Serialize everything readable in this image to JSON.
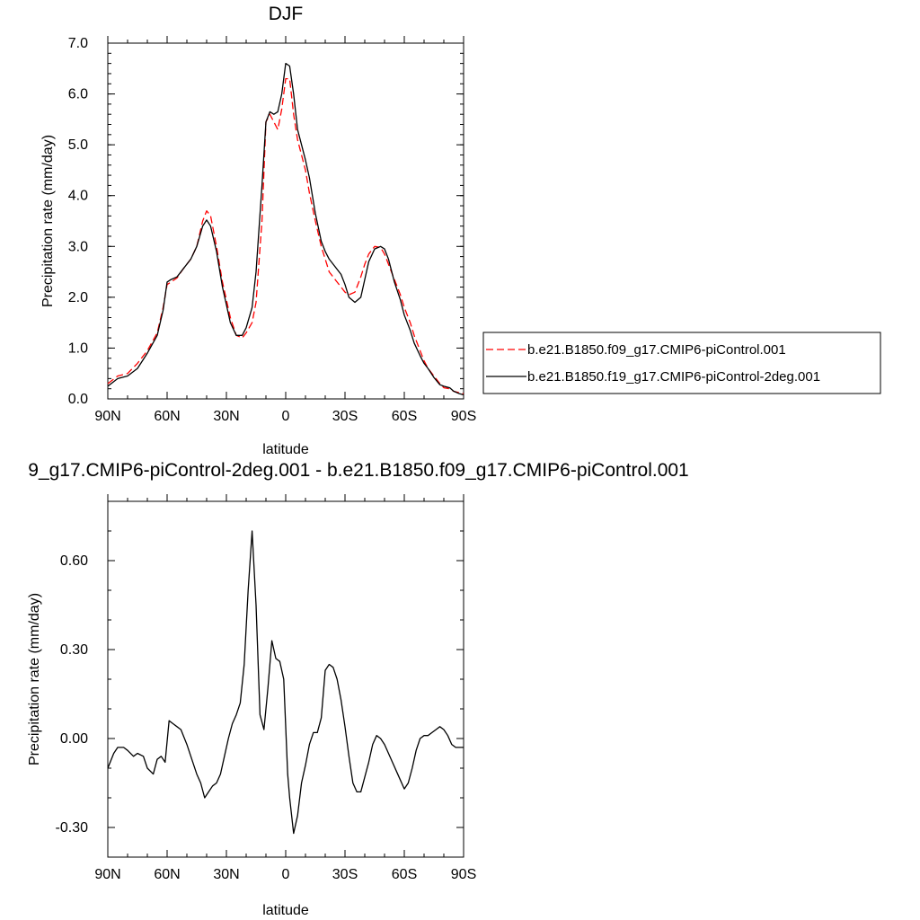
{
  "colors": {
    "control_f09": "#ff0000",
    "control_f19": "#000000",
    "difference": "#000000"
  },
  "chart_data": [
    {
      "type": "line",
      "title": "DJF",
      "xlabel": "latitude",
      "ylabel": "Precipitation rate (mm/day)",
      "xlim": [
        90,
        -90
      ],
      "ylim": [
        0,
        7
      ],
      "xticks": [
        90,
        60,
        30,
        0,
        -30,
        -60,
        -90
      ],
      "xtick_labels": [
        "90N",
        "60N",
        "30N",
        "0",
        "30S",
        "60S",
        "90S"
      ],
      "yticks": [
        0,
        1,
        2,
        3,
        4,
        5,
        6,
        7
      ],
      "ytick_labels": [
        "0.0",
        "1.0",
        "2.0",
        "3.0",
        "4.0",
        "5.0",
        "6.0",
        "7.0"
      ],
      "legend": "right",
      "series": [
        {
          "name": "b.e21.B1850.f09_g17.CMIP6-piControl.001",
          "style": "dashed",
          "color": "#ff0000",
          "x": [
            90,
            85,
            80,
            75,
            70,
            65,
            62,
            60,
            58,
            55,
            52,
            48,
            45,
            42,
            40,
            38,
            35,
            32,
            28,
            25,
            22,
            20,
            17,
            15,
            12,
            10,
            8,
            6,
            4,
            2,
            0,
            -2,
            -4,
            -6,
            -8,
            -10,
            -12,
            -15,
            -18,
            -20,
            -22,
            -25,
            -28,
            -30,
            -32,
            -35,
            -38,
            -40,
            -42,
            -45,
            -48,
            -50,
            -52,
            -55,
            -58,
            -60,
            -63,
            -65,
            -68,
            -70,
            -72,
            -75,
            -78,
            -80,
            -83,
            -85,
            -88,
            -90
          ],
          "y": [
            0.3,
            0.45,
            0.5,
            0.7,
            0.95,
            1.3,
            1.8,
            2.25,
            2.3,
            2.38,
            2.55,
            2.75,
            3.0,
            3.5,
            3.7,
            3.6,
            3.0,
            2.3,
            1.6,
            1.25,
            1.2,
            1.3,
            1.5,
            1.9,
            3.5,
            5.45,
            5.6,
            5.45,
            5.3,
            5.7,
            6.3,
            6.3,
            5.6,
            5.1,
            4.8,
            4.5,
            4.05,
            3.5,
            3.0,
            2.75,
            2.5,
            2.35,
            2.2,
            2.1,
            2.05,
            2.1,
            2.4,
            2.65,
            2.85,
            3.0,
            2.98,
            2.85,
            2.65,
            2.35,
            2.05,
            1.8,
            1.5,
            1.25,
            0.95,
            0.75,
            0.6,
            0.45,
            0.3,
            0.22,
            0.2,
            0.15,
            0.12,
            0.1
          ]
        },
        {
          "name": "b.e21.B1850.f19_g17.CMIP6-piControl-2deg.001",
          "style": "solid",
          "color": "#000000",
          "x": [
            90,
            85,
            80,
            75,
            70,
            65,
            62,
            60,
            58,
            55,
            52,
            48,
            45,
            42,
            40,
            38,
            35,
            32,
            28,
            25,
            22,
            20,
            17,
            15,
            12,
            10,
            8,
            6,
            4,
            2,
            0,
            -2,
            -4,
            -6,
            -8,
            -10,
            -12,
            -15,
            -18,
            -20,
            -22,
            -25,
            -28,
            -30,
            -32,
            -35,
            -38,
            -40,
            -42,
            -45,
            -48,
            -50,
            -52,
            -55,
            -58,
            -60,
            -63,
            -65,
            -68,
            -70,
            -72,
            -75,
            -78,
            -80,
            -83,
            -85,
            -88,
            -90
          ],
          "y": [
            0.25,
            0.4,
            0.45,
            0.6,
            0.9,
            1.25,
            1.75,
            2.3,
            2.35,
            2.4,
            2.55,
            2.75,
            3.0,
            3.4,
            3.52,
            3.4,
            2.9,
            2.2,
            1.5,
            1.25,
            1.25,
            1.4,
            1.8,
            2.5,
            4.2,
            5.45,
            5.65,
            5.6,
            5.65,
            6.0,
            6.6,
            6.55,
            6.0,
            5.3,
            5.0,
            4.7,
            4.35,
            3.65,
            3.1,
            2.9,
            2.75,
            2.6,
            2.45,
            2.25,
            2.0,
            1.9,
            2.0,
            2.35,
            2.7,
            2.95,
            3.0,
            2.95,
            2.75,
            2.3,
            1.95,
            1.65,
            1.35,
            1.1,
            0.85,
            0.7,
            0.6,
            0.42,
            0.28,
            0.25,
            0.22,
            0.15,
            0.1,
            0.08
          ]
        }
      ]
    },
    {
      "type": "line",
      "title": "9_g17.CMIP6-piControl-2deg.001 - b.e21.B1850.f09_g17.CMIP6-piControl.001",
      "xlabel": "latitude",
      "ylabel": "Precipitation rate (mm/day)",
      "xlim": [
        90,
        -90
      ],
      "ylim": [
        -0.4,
        0.8
      ],
      "xticks": [
        90,
        60,
        30,
        0,
        -30,
        -60,
        -90
      ],
      "xtick_labels": [
        "90N",
        "60N",
        "30N",
        "0",
        "30S",
        "60S",
        "90S"
      ],
      "yticks": [
        -0.3,
        0.0,
        0.3,
        0.6
      ],
      "ytick_labels": [
        "-0.30",
        "0.00",
        "0.30",
        "0.60"
      ],
      "series": [
        {
          "style": "solid",
          "color": "#000000",
          "x": [
            90,
            87,
            85,
            82,
            80,
            77,
            75,
            72,
            70,
            67,
            65,
            63,
            61,
            59,
            57,
            55,
            53,
            50,
            48,
            45,
            43,
            41,
            39,
            37,
            35,
            33,
            31,
            29,
            27,
            25,
            23,
            21,
            19,
            17,
            15,
            13,
            11,
            9,
            7,
            5,
            3,
            1,
            -1,
            -2,
            -4,
            -6,
            -8,
            -10,
            -12,
            -14,
            -16,
            -18,
            -20,
            -22,
            -24,
            -26,
            -28,
            -30,
            -32,
            -34,
            -36,
            -38,
            -40,
            -42,
            -44,
            -46,
            -48,
            -50,
            -52,
            -54,
            -56,
            -58,
            -60,
            -62,
            -64,
            -66,
            -68,
            -70,
            -72,
            -74,
            -76,
            -78,
            -80,
            -82,
            -84,
            -86,
            -88,
            -90
          ],
          "y": [
            -0.1,
            -0.05,
            -0.03,
            -0.03,
            -0.04,
            -0.06,
            -0.05,
            -0.06,
            -0.1,
            -0.12,
            -0.07,
            -0.06,
            -0.08,
            0.06,
            0.05,
            0.04,
            0.03,
            -0.02,
            -0.06,
            -0.12,
            -0.15,
            -0.2,
            -0.18,
            -0.16,
            -0.15,
            -0.12,
            -0.06,
            0.0,
            0.05,
            0.08,
            0.12,
            0.25,
            0.5,
            0.7,
            0.45,
            0.08,
            0.03,
            0.17,
            0.33,
            0.27,
            0.26,
            0.2,
            -0.12,
            -0.2,
            -0.32,
            -0.26,
            -0.15,
            -0.09,
            -0.02,
            0.02,
            0.02,
            0.07,
            0.23,
            0.25,
            0.24,
            0.2,
            0.13,
            0.04,
            -0.06,
            -0.15,
            -0.18,
            -0.18,
            -0.13,
            -0.08,
            -0.02,
            0.01,
            0.0,
            -0.02,
            -0.05,
            -0.08,
            -0.11,
            -0.14,
            -0.17,
            -0.15,
            -0.1,
            -0.04,
            0.0,
            0.01,
            0.01,
            0.02,
            0.03,
            0.04,
            0.03,
            0.01,
            -0.02,
            -0.03,
            -0.03,
            -0.03
          ]
        }
      ]
    }
  ]
}
